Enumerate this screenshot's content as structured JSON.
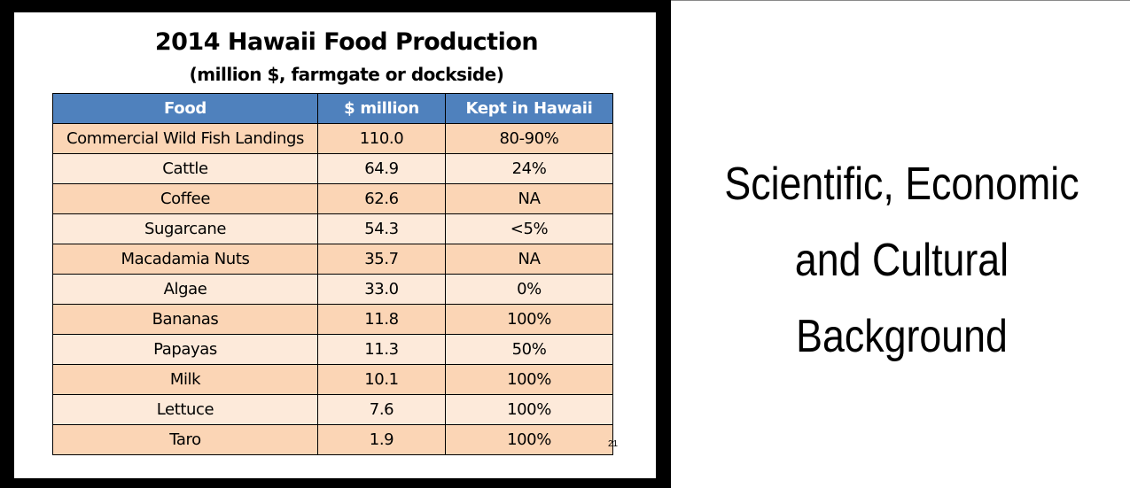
{
  "slide": {
    "title": "2014 Hawaii Food Production",
    "subtitle": "(million $, farmgate or dockside)",
    "slide_number": "21",
    "table": {
      "headers": [
        "Food",
        "$ million",
        "Kept in Hawaii"
      ],
      "rows": [
        [
          "Commercial Wild Fish Landings",
          "110.0",
          "80-90%"
        ],
        [
          "Cattle",
          "64.9",
          "24%"
        ],
        [
          "Coffee",
          "62.6",
          "NA"
        ],
        [
          "Sugarcane",
          "54.3",
          "<5%"
        ],
        [
          "Macadamia Nuts",
          "35.7",
          "NA"
        ],
        [
          "Algae",
          "33.0",
          "0%"
        ],
        [
          "Bananas",
          "11.8",
          "100%"
        ],
        [
          "Papayas",
          "11.3",
          "50%"
        ],
        [
          "Milk",
          "10.1",
          "100%"
        ],
        [
          "Lettuce",
          "7.6",
          "100%"
        ],
        [
          "Taro",
          "1.9",
          "100%"
        ]
      ]
    },
    "colors": {
      "header": "#4f81bd",
      "row_odd": "#fbd5b5",
      "row_even": "#fdeada",
      "frame": "#000000"
    }
  },
  "side_panel": {
    "lines": [
      "Scientific, Economic",
      "and Cultural",
      "Background"
    ]
  }
}
